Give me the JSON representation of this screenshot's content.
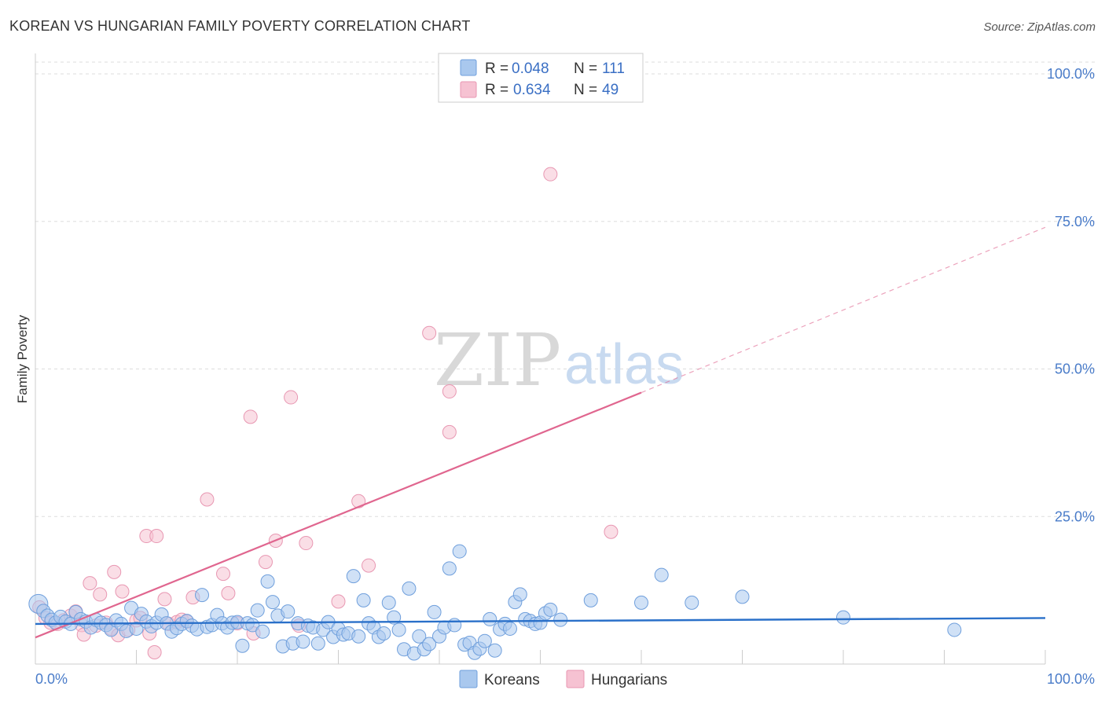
{
  "title": "KOREAN VS HUNGARIAN FAMILY POVERTY CORRELATION CHART",
  "source": "Source: ZipAtlas.com",
  "watermark": {
    "part1": "ZIP",
    "part2": "atlas"
  },
  "legend": {
    "rows": [
      {
        "r_label": "R = ",
        "r_value": "0.048",
        "n_label": "N = ",
        "n_value": "111"
      },
      {
        "r_label": "R = ",
        "r_value": "0.634",
        "n_label": "N = ",
        "n_value": "49"
      }
    ]
  },
  "bottom_legend": [
    "Koreans",
    "Hungarians"
  ],
  "colors": {
    "koreans_fill": "#a9c8ee",
    "koreans_stroke": "#6f9fdc",
    "koreans_line": "#2a70c9",
    "hungarians_fill": "#f6c2d2",
    "hungarians_stroke": "#e897b2",
    "hungarians_line": "#e0668f",
    "grid": "#dddddd"
  },
  "chart_data": {
    "type": "scatter",
    "title": "KOREAN VS HUNGARIAN FAMILY POVERTY CORRELATION CHART",
    "xlabel": "",
    "ylabel": "Family Poverty",
    "xlim": [
      0,
      100
    ],
    "ylim": [
      0,
      102
    ],
    "x_tick_labels": [
      "0.0%",
      "100.0%"
    ],
    "y_ticks": [
      25,
      50,
      75,
      100
    ],
    "y_tick_labels": [
      "25.0%",
      "50.0%",
      "75.0%",
      "100.0%"
    ],
    "series": [
      {
        "name": "Koreans",
        "R": 0.048,
        "N": 111,
        "trend": {
          "x0": 0,
          "y0": 6.8,
          "x1": 100,
          "y1": 7.8
        },
        "points": [
          [
            0.3,
            10.2
          ],
          [
            0.8,
            9.0
          ],
          [
            1.2,
            8.2
          ],
          [
            1.6,
            7.5
          ],
          [
            2.0,
            7.0
          ],
          [
            2.5,
            8.0
          ],
          [
            3.0,
            7.2
          ],
          [
            3.5,
            6.8
          ],
          [
            4.0,
            8.8
          ],
          [
            4.5,
            7.6
          ],
          [
            5.0,
            7.2
          ],
          [
            5.5,
            6.2
          ],
          [
            6.0,
            7.5
          ],
          [
            6.5,
            7.0
          ],
          [
            7.0,
            6.6
          ],
          [
            7.5,
            5.8
          ],
          [
            8.0,
            7.4
          ],
          [
            8.5,
            6.8
          ],
          [
            9.0,
            5.6
          ],
          [
            9.5,
            9.5
          ],
          [
            10.0,
            6.0
          ],
          [
            10.5,
            8.5
          ],
          [
            11.0,
            7.2
          ],
          [
            11.5,
            6.4
          ],
          [
            12.0,
            7.0
          ],
          [
            12.5,
            8.4
          ],
          [
            13.0,
            6.9
          ],
          [
            13.5,
            5.5
          ],
          [
            14.0,
            6.1
          ],
          [
            14.5,
            6.8
          ],
          [
            15.0,
            7.3
          ],
          [
            15.5,
            6.5
          ],
          [
            16.0,
            5.9
          ],
          [
            16.5,
            11.7
          ],
          [
            17.0,
            6.3
          ],
          [
            17.5,
            6.6
          ],
          [
            18.0,
            8.3
          ],
          [
            18.5,
            6.9
          ],
          [
            19.0,
            6.2
          ],
          [
            19.5,
            7.0
          ],
          [
            20.0,
            7.1
          ],
          [
            20.5,
            3.1
          ],
          [
            21.0,
            6.9
          ],
          [
            21.5,
            6.6
          ],
          [
            22.0,
            9.1
          ],
          [
            22.5,
            5.5
          ],
          [
            23.0,
            14.0
          ],
          [
            23.5,
            10.5
          ],
          [
            24.0,
            8.2
          ],
          [
            24.5,
            3.0
          ],
          [
            25.0,
            8.9
          ],
          [
            25.5,
            3.5
          ],
          [
            26.0,
            6.9
          ],
          [
            26.5,
            3.8
          ],
          [
            27.0,
            6.5
          ],
          [
            27.5,
            6.2
          ],
          [
            28.0,
            3.5
          ],
          [
            28.5,
            5.8
          ],
          [
            29.0,
            7.1
          ],
          [
            29.5,
            4.6
          ],
          [
            30.0,
            6.0
          ],
          [
            30.5,
            5.0
          ],
          [
            31.0,
            5.2
          ],
          [
            31.5,
            14.9
          ],
          [
            32.0,
            4.7
          ],
          [
            32.5,
            10.8
          ],
          [
            33.0,
            6.9
          ],
          [
            33.5,
            6.2
          ],
          [
            34.0,
            4.6
          ],
          [
            34.5,
            5.2
          ],
          [
            35.0,
            10.4
          ],
          [
            35.5,
            7.9
          ],
          [
            36.0,
            5.8
          ],
          [
            36.5,
            2.5
          ],
          [
            37.0,
            12.8
          ],
          [
            37.5,
            1.8
          ],
          [
            38.0,
            4.7
          ],
          [
            38.5,
            2.5
          ],
          [
            39.0,
            3.4
          ],
          [
            39.5,
            8.8
          ],
          [
            40.0,
            4.7
          ],
          [
            40.5,
            6.2
          ],
          [
            41.0,
            16.2
          ],
          [
            41.5,
            6.6
          ],
          [
            42.0,
            19.1
          ],
          [
            42.5,
            3.3
          ],
          [
            43.0,
            3.6
          ],
          [
            43.5,
            1.9
          ],
          [
            44.0,
            2.6
          ],
          [
            44.5,
            3.9
          ],
          [
            45.0,
            7.6
          ],
          [
            45.5,
            2.3
          ],
          [
            46.0,
            5.9
          ],
          [
            46.5,
            6.8
          ],
          [
            47.0,
            6.0
          ],
          [
            47.5,
            10.5
          ],
          [
            48.0,
            11.8
          ],
          [
            48.5,
            7.6
          ],
          [
            49.0,
            7.3
          ],
          [
            49.5,
            6.8
          ],
          [
            50.0,
            7.0
          ],
          [
            50.5,
            8.6
          ],
          [
            51.0,
            9.2
          ],
          [
            52.0,
            7.5
          ],
          [
            55.0,
            10.8
          ],
          [
            60.0,
            10.4
          ],
          [
            62.0,
            15.1
          ],
          [
            65.0,
            10.4
          ],
          [
            70.0,
            11.4
          ],
          [
            80.0,
            7.9
          ],
          [
            91.0,
            5.8
          ]
        ]
      },
      {
        "name": "Hungarians",
        "R": 0.634,
        "N": 49,
        "trend": {
          "x0": 0,
          "y0": 4.5,
          "x1": 60,
          "y1": 46.0,
          "dashed_to_x": 100,
          "dashed_to_y": 74.0
        },
        "points": [
          [
            0.4,
            9.6
          ],
          [
            1.0,
            7.8
          ],
          [
            1.5,
            7.0
          ],
          [
            2.2,
            6.8
          ],
          [
            2.8,
            7.4
          ],
          [
            3.5,
            8.2
          ],
          [
            4.0,
            8.9
          ],
          [
            4.6,
            6.6
          ],
          [
            4.8,
            5.0
          ],
          [
            5.4,
            13.7
          ],
          [
            6.0,
            6.5
          ],
          [
            6.4,
            11.8
          ],
          [
            7.0,
            7.0
          ],
          [
            7.5,
            6.0
          ],
          [
            7.8,
            15.6
          ],
          [
            8.2,
            4.9
          ],
          [
            8.6,
            12.3
          ],
          [
            9.2,
            5.8
          ],
          [
            10.0,
            7.4
          ],
          [
            10.4,
            7.8
          ],
          [
            11.0,
            21.7
          ],
          [
            11.3,
            5.2
          ],
          [
            11.8,
            2.0
          ],
          [
            12.0,
            21.7
          ],
          [
            12.8,
            11.0
          ],
          [
            13.2,
            6.8
          ],
          [
            14.0,
            7.1
          ],
          [
            14.5,
            7.5
          ],
          [
            15.0,
            7.2
          ],
          [
            15.6,
            11.3
          ],
          [
            17.0,
            27.9
          ],
          [
            18.6,
            15.3
          ],
          [
            19.1,
            12.0
          ],
          [
            20.0,
            6.9
          ],
          [
            21.3,
            41.9
          ],
          [
            21.6,
            5.2
          ],
          [
            22.8,
            17.3
          ],
          [
            23.8,
            20.9
          ],
          [
            25.3,
            45.2
          ],
          [
            26.1,
            6.5
          ],
          [
            26.8,
            20.5
          ],
          [
            30.0,
            10.6
          ],
          [
            32.0,
            27.6
          ],
          [
            33.0,
            16.7
          ],
          [
            39.0,
            56.1
          ],
          [
            41.0,
            46.2
          ],
          [
            41.0,
            39.3
          ],
          [
            51.0,
            83.0
          ],
          [
            57.0,
            22.4
          ]
        ]
      }
    ]
  }
}
